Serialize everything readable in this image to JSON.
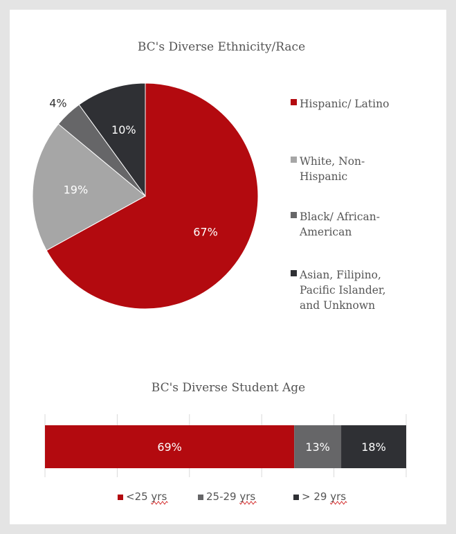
{
  "colors": {
    "red": "#b30a0f",
    "light_gray": "#a6a6a6",
    "mid_gray": "#666668",
    "dark_gray": "#2f3034",
    "text": "#555555",
    "axis": "#d9d9d9",
    "spellcheck": "#d01f1f"
  },
  "chart_data": [
    {
      "type": "pie",
      "title": "BC's Diverse Ethnicity/Race",
      "legend_position": "right",
      "slices": [
        {
          "name": "Hispanic/ Latino",
          "legend_lines": [
            "Hispanic/ Latino"
          ],
          "value": 67,
          "label": "67%",
          "color": "#b30a0f",
          "label_color": "#ffffff"
        },
        {
          "name": "White, Non-Hispanic",
          "legend_lines": [
            "White, Non-",
            "Hispanic"
          ],
          "value": 19,
          "label": "19%",
          "color": "#a6a6a6",
          "label_color": "#ffffff"
        },
        {
          "name": "Black/ African-American",
          "legend_lines": [
            "Black/ African-",
            "American"
          ],
          "value": 4,
          "label": "4%",
          "color": "#666668",
          "label_color": "#333333"
        },
        {
          "name": "Asian, Filipino, Pacific Islander, and Unknown",
          "legend_lines": [
            "Asian, Filipino,",
            "Pacific Islander,",
            "and Unknown"
          ],
          "value": 10,
          "label": "10%",
          "color": "#2f3034",
          "label_color": "#ffffff"
        }
      ]
    },
    {
      "type": "bar",
      "orientation": "horizontal",
      "stacked": true,
      "title": "BC's Diverse Student Age",
      "legend_position": "bottom",
      "xlim": [
        0,
        100
      ],
      "series": [
        {
          "name": "<25 yrs",
          "value": 69,
          "label": "69%",
          "color": "#b30a0f"
        },
        {
          "name": "25-29 yrs",
          "value": 13,
          "label": "13%",
          "color": "#666668"
        },
        {
          "name": "> 29 yrs",
          "value": 18,
          "label": "18%",
          "color": "#2f3034"
        }
      ]
    }
  ]
}
